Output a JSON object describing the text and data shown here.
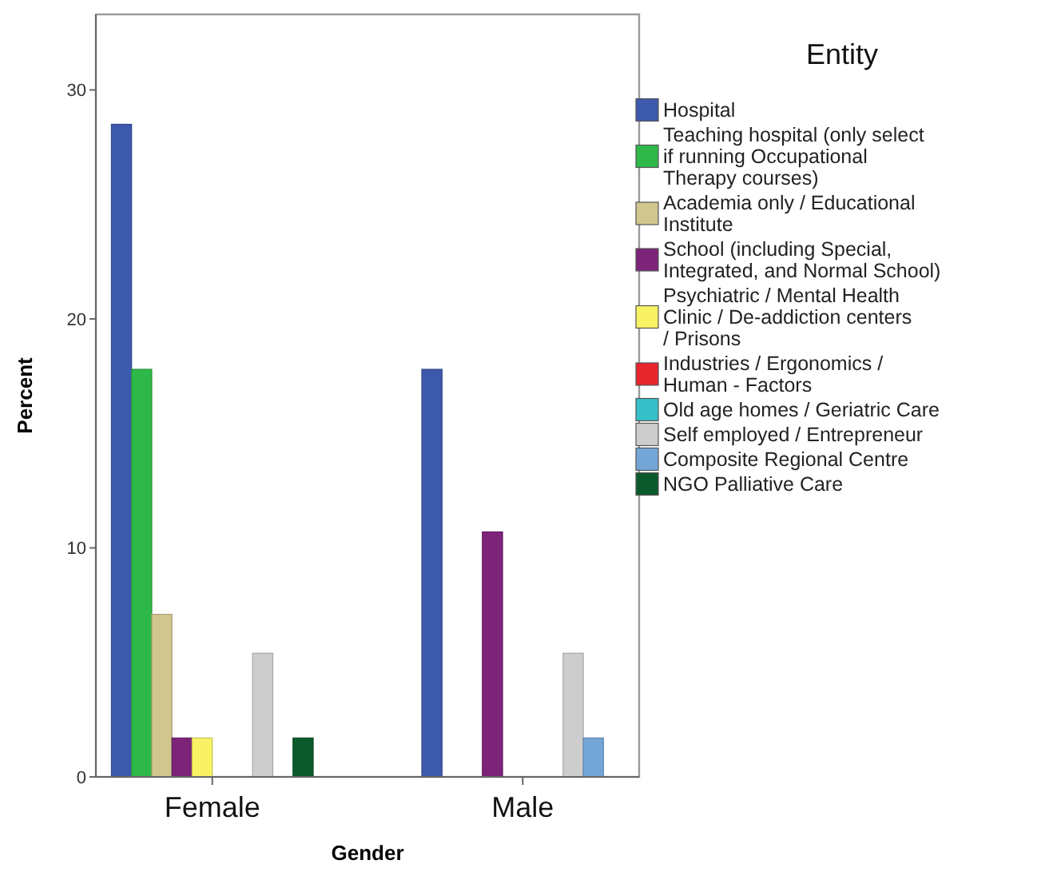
{
  "chart_data": {
    "type": "bar",
    "xlabel": "Gender",
    "ylabel": "Percent",
    "legend_title": "Entity",
    "legend": "right",
    "grid": false,
    "categories": [
      "Female",
      "Male"
    ],
    "ylim": [
      0,
      33.3
    ],
    "yticks": [
      0,
      10,
      20,
      30
    ],
    "series": [
      {
        "name": "Hospital",
        "color": "#3d59ab",
        "values": [
          28.5,
          17.8
        ]
      },
      {
        "name": "Teaching hospital (only select if running Occupational Therapy  courses)",
        "color": "#2eb84a",
        "values": [
          17.8,
          0
        ]
      },
      {
        "name": "Academia only / Educational Institute",
        "color": "#d2c68f",
        "values": [
          7.1,
          0
        ]
      },
      {
        "name": "School (including Special, Integrated, and Normal School)",
        "color": "#7d2479",
        "values": [
          1.7,
          10.7
        ]
      },
      {
        "name": "Psychiatric / Mental Health Clinic / De-addiction centers / Prisons",
        "color": "#f8f264",
        "values": [
          1.7,
          0
        ]
      },
      {
        "name": "Industries / Ergonomics / Human - Factors",
        "color": "#e8262e",
        "values": [
          0,
          0
        ]
      },
      {
        "name": "Old age homes / Geriatric Care",
        "color": "#35bfc6",
        "values": [
          0,
          0
        ]
      },
      {
        "name": "Self employed / Entrepreneur",
        "color": "#cdcdcd",
        "values": [
          5.4,
          5.4
        ]
      },
      {
        "name": "Composite Regional Centre",
        "color": "#74a6d8",
        "values": [
          0,
          1.7
        ]
      },
      {
        "name": "NGO Palliative Care",
        "color": "#0b5a2b",
        "values": [
          1.7,
          0
        ]
      }
    ]
  }
}
